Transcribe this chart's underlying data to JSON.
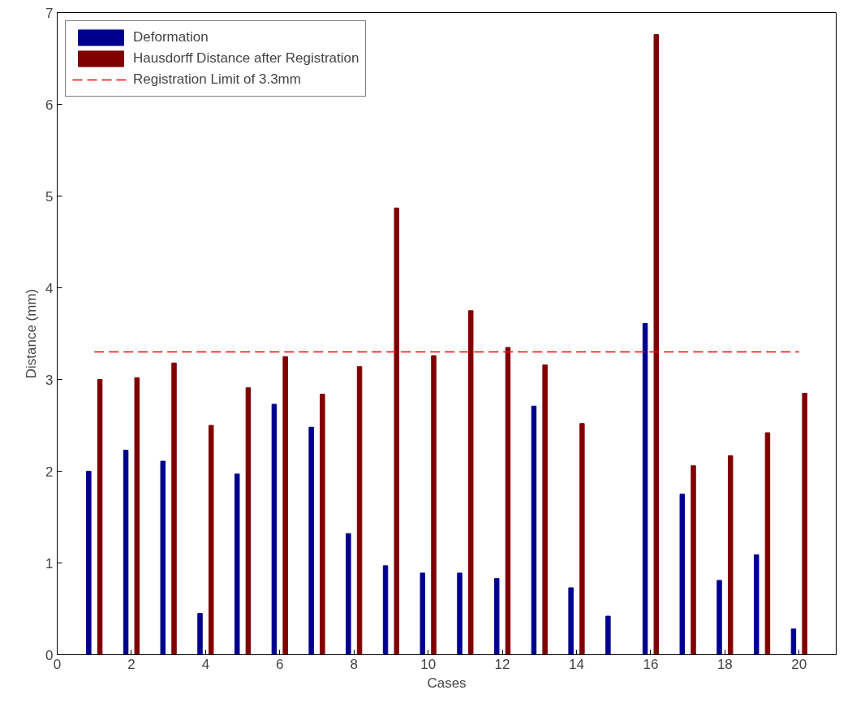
{
  "chart_data": {
    "type": "bar",
    "xlabel": "Cases",
    "ylabel": "Distance (mm)",
    "x": [
      1,
      2,
      3,
      4,
      5,
      6,
      7,
      8,
      9,
      10,
      11,
      12,
      13,
      14,
      15,
      16,
      17,
      18,
      19,
      20
    ],
    "series": [
      {
        "name": "Deformation",
        "color": "#00008f",
        "values": [
          2.0,
          2.23,
          2.11,
          0.45,
          1.97,
          2.73,
          2.48,
          1.32,
          0.97,
          0.89,
          0.89,
          0.83,
          2.71,
          0.73,
          0.42,
          3.61,
          1.75,
          0.81,
          1.09,
          0.28
        ]
      },
      {
        "name": "Hausdorff Distance after Registration",
        "color": "#800000",
        "values": [
          3.0,
          3.02,
          3.18,
          2.5,
          2.91,
          3.25,
          2.84,
          3.14,
          4.87,
          3.26,
          3.75,
          3.35,
          3.16,
          2.52,
          null,
          6.76,
          2.06,
          2.17,
          2.42,
          2.85
        ]
      },
      {
        "name": "Registration Limit of 3.3mm",
        "type": "line",
        "color": "#ff0000",
        "line_style": "dashed",
        "x": [
          1,
          20
        ],
        "values": [
          3.3,
          3.3
        ]
      }
    ],
    "xlim": [
      0,
      21
    ],
    "xticks": [
      0,
      2,
      4,
      6,
      8,
      10,
      12,
      14,
      16,
      18,
      20
    ],
    "ylim": [
      0,
      7
    ],
    "yticks": [
      0,
      1,
      2,
      3,
      4,
      5,
      6,
      7
    ],
    "legend": "top left",
    "grid": false
  }
}
